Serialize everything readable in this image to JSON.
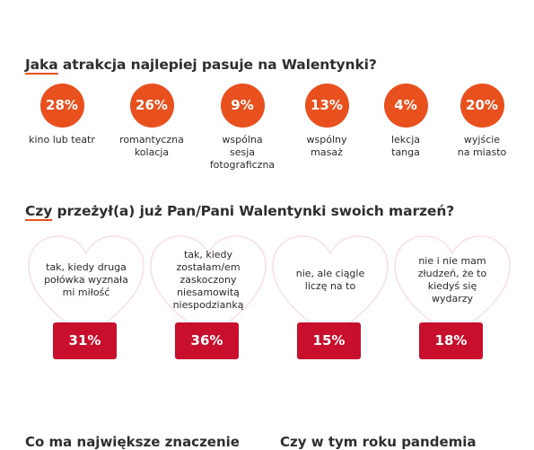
{
  "chart_data": [
    {
      "type": "table",
      "question_first": "Jaka",
      "question_rest": " atrakcja najlepiej pasuje na Walentynki?",
      "items": [
        {
          "value": "28%",
          "label": [
            "kino lub teatr"
          ]
        },
        {
          "value": "26%",
          "label": [
            "romantyczna",
            "kolacja"
          ]
        },
        {
          "value": "9%",
          "label": [
            "wspólna",
            "sesja",
            "fotograficzna"
          ]
        },
        {
          "value": "13%",
          "label": [
            "wspólny",
            "masaż"
          ]
        },
        {
          "value": "4%",
          "label": [
            "lekcja",
            "tanga"
          ]
        },
        {
          "value": "20%",
          "label": [
            "wyjście",
            "na miasto"
          ]
        }
      ]
    },
    {
      "type": "table",
      "question_first": "Czy",
      "question_rest": " przeżył(a) już Pan/Pani Walentynki swoich marzeń?",
      "items": [
        {
          "value": "31%",
          "label": [
            "tak, kiedy druga",
            "połówka wyznała",
            "mi miłość"
          ]
        },
        {
          "value": "36%",
          "label": [
            "tak, kiedy",
            "zostałam/em",
            "zaskoczony",
            "niesamowitą",
            "niespodzianką"
          ]
        },
        {
          "value": "15%",
          "label": [
            "nie, ale ciągle",
            "liczę na to"
          ]
        },
        {
          "value": "18%",
          "label": [
            "nie i nie mam",
            "złudzeń, że to",
            "kiedyś się",
            "wydarzy"
          ]
        }
      ]
    }
  ],
  "bottom_questions": {
    "left": "Co ma największe znaczenie",
    "right": "Czy w tym roku pandemia"
  },
  "colors": {
    "circle": "#e8501e",
    "badge": "#c8102e",
    "heart_outline": "#f6e2e2"
  }
}
